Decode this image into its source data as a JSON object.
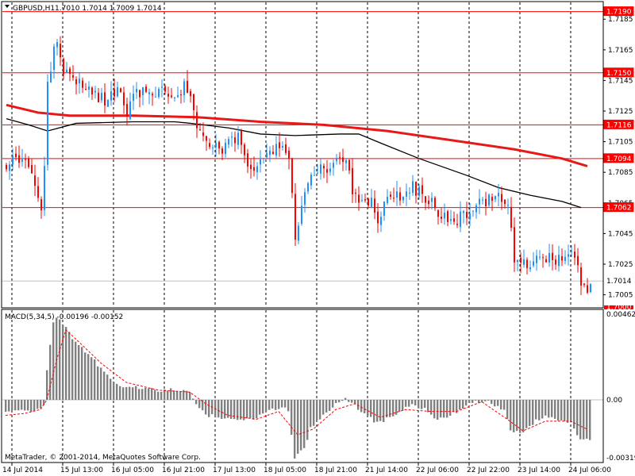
{
  "colors": {
    "background": "#ffffff",
    "frame": "#000000",
    "bull": "#1e90ff",
    "bear": "#ff0000",
    "ma_slow": "#e81818",
    "ma_fast": "#000000",
    "level_line": "#ff0000",
    "level_tag": "#ff0000",
    "grid": "#000000",
    "macd_hist": "#808080",
    "macd_signal": "#ff0000"
  },
  "header": {
    "symbol_timeframe": "GBPUSD,H1",
    "ohlc": "1.7010 1.7014 1.7009 1.7014",
    "menu_icon": "triangle-down-icon"
  },
  "chart_data": [
    {
      "type": "candlestick",
      "title": "GBPUSD,H1",
      "ylim": [
        1.6997,
        1.7196
      ],
      "y_ticks": [
        "1.7185",
        "1.7165",
        "1.7145",
        "1.7125",
        "1.7105",
        "1.7085",
        "1.7065",
        "1.7045",
        "1.7025",
        "1.7005"
      ],
      "current_price": "1.7014",
      "bottom_tag": "1.7000",
      "levels": [
        {
          "value": 1.719,
          "label": "1.7190"
        },
        {
          "value": 1.715,
          "label": "1.7150"
        },
        {
          "value": 1.7116,
          "label": "1.7116"
        },
        {
          "value": 1.7094,
          "label": "1.7094"
        },
        {
          "value": 1.7062,
          "label": "1.7062"
        }
      ],
      "x_labels": [
        "14 Jul 2014",
        "15 Jul 13:00",
        "16 Jul 05:00",
        "16 Jul 21:00",
        "17 Jul 13:00",
        "18 Jul 05:00",
        "18 Jul 21:00",
        "21 Jul 14:00",
        "22 Jul 06:00",
        "22 Jul 22:00",
        "23 Jul 14:00",
        "24 Jul 06:00"
      ],
      "vertical_gridlines_at_bar": [
        0,
        16,
        32,
        48,
        64,
        80,
        96,
        112,
        128,
        144,
        160,
        176
      ],
      "close_path": [
        [
          0,
          1.709
        ],
        [
          3,
          1.7092
        ],
        [
          7,
          1.7091
        ],
        [
          11,
          1.7062
        ],
        [
          12,
          1.7085
        ],
        [
          13,
          1.7145
        ],
        [
          15,
          1.7165
        ],
        [
          16,
          1.7172
        ],
        [
          18,
          1.7152
        ],
        [
          20,
          1.7145
        ],
        [
          24,
          1.7142
        ],
        [
          28,
          1.7135
        ],
        [
          32,
          1.7132
        ],
        [
          36,
          1.7138
        ],
        [
          38,
          1.7122
        ],
        [
          40,
          1.714
        ],
        [
          44,
          1.7135
        ],
        [
          48,
          1.7137
        ],
        [
          52,
          1.7138
        ],
        [
          56,
          1.714
        ],
        [
          58,
          1.7136
        ],
        [
          61,
          1.7108
        ],
        [
          64,
          1.7102
        ],
        [
          68,
          1.7098
        ],
        [
          71,
          1.7105
        ],
        [
          73,
          1.7107
        ],
        [
          75,
          1.7092
        ],
        [
          78,
          1.7086
        ],
        [
          82,
          1.7097
        ],
        [
          85,
          1.7102
        ],
        [
          87,
          1.7098
        ],
        [
          89,
          1.709
        ],
        [
          91,
          1.7045
        ],
        [
          93,
          1.7062
        ],
        [
          95,
          1.7077
        ],
        [
          97,
          1.7085
        ],
        [
          100,
          1.7088
        ],
        [
          103,
          1.7087
        ],
        [
          105,
          1.7093
        ],
        [
          107,
          1.709
        ],
        [
          109,
          1.7075
        ],
        [
          111,
          1.7068
        ],
        [
          113,
          1.7064
        ],
        [
          115,
          1.7065
        ],
        [
          117,
          1.7055
        ],
        [
          119,
          1.7062
        ],
        [
          121,
          1.7072
        ],
        [
          124,
          1.707
        ],
        [
          128,
          1.7075
        ],
        [
          131,
          1.707
        ],
        [
          134,
          1.7064
        ],
        [
          137,
          1.7055
        ],
        [
          139,
          1.7057
        ],
        [
          141,
          1.705
        ],
        [
          144,
          1.7058
        ],
        [
          148,
          1.7064
        ],
        [
          152,
          1.7068
        ],
        [
          155,
          1.707
        ],
        [
          158,
          1.706
        ],
        [
          160,
          1.703
        ],
        [
          162,
          1.703
        ],
        [
          165,
          1.7025
        ],
        [
          168,
          1.703
        ],
        [
          172,
          1.7029
        ],
        [
          176,
          1.7026
        ],
        [
          179,
          1.7032
        ],
        [
          181,
          1.701
        ],
        [
          183,
          1.701
        ],
        [
          184,
          1.7014
        ]
      ],
      "ma_slow": [
        [
          0,
          1.7129
        ],
        [
          10,
          1.7124
        ],
        [
          20,
          1.7122
        ],
        [
          40,
          1.7122
        ],
        [
          60,
          1.7121
        ],
        [
          80,
          1.7118
        ],
        [
          100,
          1.7116
        ],
        [
          120,
          1.7112
        ],
        [
          140,
          1.7106
        ],
        [
          160,
          1.71
        ],
        [
          175,
          1.7094
        ],
        [
          183,
          1.7089
        ]
      ],
      "ma_fast": [
        [
          0,
          1.712
        ],
        [
          7,
          1.7116
        ],
        [
          13,
          1.7112
        ],
        [
          22,
          1.7117
        ],
        [
          40,
          1.7118
        ],
        [
          53,
          1.7118
        ],
        [
          58,
          1.7117
        ],
        [
          70,
          1.7114
        ],
        [
          80,
          1.711
        ],
        [
          91,
          1.7109
        ],
        [
          105,
          1.711
        ],
        [
          111,
          1.711
        ],
        [
          118,
          1.7104
        ],
        [
          130,
          1.7094
        ],
        [
          145,
          1.7083
        ],
        [
          155,
          1.7075
        ],
        [
          165,
          1.707
        ],
        [
          175,
          1.7066
        ],
        [
          181,
          1.7062
        ]
      ]
    },
    {
      "type": "bar",
      "title": "MACD(5,34,5) -0.00196 -0.00152",
      "ylim": [
        -0.00319,
        0.00462
      ],
      "y_ticks": [
        "0.00462",
        "0.00",
        "-0.00319"
      ],
      "histogram_path": [
        [
          0,
          -0.0006
        ],
        [
          6,
          -0.0006
        ],
        [
          11,
          -0.0005
        ],
        [
          12,
          -0.0002
        ],
        [
          13,
          0.0016
        ],
        [
          15,
          0.004
        ],
        [
          16,
          0.0043
        ],
        [
          18,
          0.0039
        ],
        [
          22,
          0.003
        ],
        [
          28,
          0.002
        ],
        [
          33,
          0.0011
        ],
        [
          37,
          0.0007
        ],
        [
          42,
          0.0006
        ],
        [
          48,
          0.0005
        ],
        [
          54,
          0.0005
        ],
        [
          58,
          0.0004
        ],
        [
          61,
          -0.0004
        ],
        [
          64,
          -0.0008
        ],
        [
          69,
          -0.001
        ],
        [
          74,
          -0.001
        ],
        [
          78,
          -0.001
        ],
        [
          82,
          -0.0006
        ],
        [
          86,
          -0.0004
        ],
        [
          89,
          -0.0005
        ],
        [
          91,
          -0.003
        ],
        [
          94,
          -0.0025
        ],
        [
          96,
          -0.0015
        ],
        [
          100,
          -0.0008
        ],
        [
          104,
          -0.0002
        ],
        [
          107,
          0.0
        ],
        [
          110,
          -0.0003
        ],
        [
          114,
          -0.0008
        ],
        [
          117,
          -0.0012
        ],
        [
          120,
          -0.001
        ],
        [
          124,
          -0.0006
        ],
        [
          128,
          -0.0002
        ],
        [
          132,
          -0.0005
        ],
        [
          136,
          -0.001
        ],
        [
          140,
          -0.0008
        ],
        [
          144,
          -0.0004
        ],
        [
          148,
          -0.0001
        ],
        [
          151,
          0.0
        ],
        [
          154,
          -0.0003
        ],
        [
          157,
          -0.0005
        ],
        [
          159,
          -0.0015
        ],
        [
          162,
          -0.0018
        ],
        [
          166,
          -0.0012
        ],
        [
          170,
          -0.0008
        ],
        [
          174,
          -0.001
        ],
        [
          178,
          -0.0012
        ],
        [
          181,
          -0.002
        ],
        [
          183,
          -0.002
        ]
      ],
      "signal_path": [
        [
          0,
          -0.0008
        ],
        [
          6,
          -0.0007
        ],
        [
          11,
          -0.0005
        ],
        [
          13,
          0.0
        ],
        [
          16,
          0.002
        ],
        [
          19,
          0.0036
        ],
        [
          23,
          0.003
        ],
        [
          30,
          0.0019
        ],
        [
          38,
          0.0009
        ],
        [
          48,
          0.0005
        ],
        [
          58,
          0.0004
        ],
        [
          63,
          -0.0002
        ],
        [
          70,
          -0.0008
        ],
        [
          79,
          -0.001
        ],
        [
          86,
          -0.0006
        ],
        [
          92,
          -0.0018
        ],
        [
          97,
          -0.0015
        ],
        [
          104,
          -0.0005
        ],
        [
          110,
          -0.0002
        ],
        [
          118,
          -0.0009
        ],
        [
          126,
          -0.0005
        ],
        [
          134,
          -0.0006
        ],
        [
          142,
          -0.0006
        ],
        [
          150,
          -0.0001
        ],
        [
          158,
          -0.001
        ],
        [
          163,
          -0.0016
        ],
        [
          170,
          -0.0011
        ],
        [
          178,
          -0.0011
        ],
        [
          183,
          -0.0015
        ]
      ]
    }
  ],
  "footer": {
    "copyright": "MetaTrader, © 2001-2014, MetaQuotes Software Corp."
  }
}
